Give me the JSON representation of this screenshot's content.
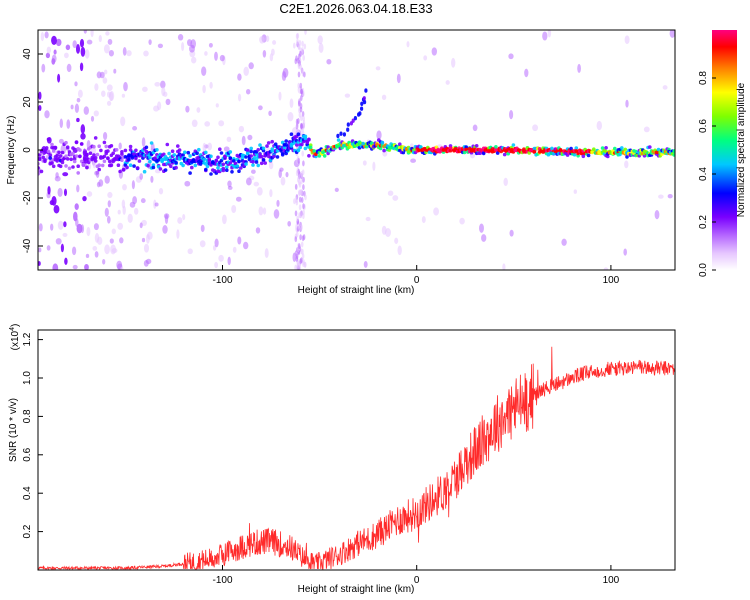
{
  "title": "C2E1.2026.063.04.18.E33",
  "chart_data": [
    {
      "type": "heatmap",
      "xlabel": "Height of straight line (km)",
      "ylabel": "Frequency (Hz)",
      "xlim": [
        -195,
        133
      ],
      "ylim": [
        -50,
        50
      ],
      "xticks": [
        -100,
        0,
        100
      ],
      "yticks": [
        -40,
        -20,
        0,
        20,
        40
      ],
      "colorbar": {
        "label": "Normalized spectral amplitude",
        "range": [
          0,
          1
        ],
        "ticks": [
          "0.0",
          "0.2",
          "0.4",
          "0.6",
          "0.8"
        ],
        "ticks_values": [
          0,
          0.2,
          0.4,
          0.6,
          0.8
        ],
        "colors": [
          "#ffffff",
          "#e6c6ff",
          "#b86cff",
          "#7a00ff",
          "#0000ff",
          "#00c8ff",
          "#00ff80",
          "#7fff00",
          "#ffff00",
          "#ff8000",
          "#ff0000",
          "#ff007f"
        ]
      },
      "ridge": [
        [
          -195,
          -2
        ],
        [
          -150,
          -3
        ],
        [
          -120,
          -4
        ],
        [
          -100,
          -5
        ],
        [
          -80,
          -2
        ],
        [
          -65,
          1
        ],
        [
          -58,
          4
        ],
        [
          -52,
          -2
        ],
        [
          -40,
          2
        ],
        [
          -20,
          2
        ],
        [
          0,
          0
        ],
        [
          50,
          0
        ],
        [
          100,
          -1
        ],
        [
          133,
          -1
        ]
      ],
      "ridge_branch": [
        [
          -40,
          5
        ],
        [
          -30,
          15
        ],
        [
          -25,
          25
        ]
      ]
    },
    {
      "type": "line",
      "xlabel": "Height of straight line (km)",
      "ylabel": "SNR (10 * v/v)",
      "yscale_label": "(x10",
      "yscale_exp": "4",
      "yscale_close": ")",
      "xlim": [
        -195,
        133
      ],
      "ylim": [
        0,
        1.25
      ],
      "xticks": [
        -100,
        0,
        100
      ],
      "yticks": [
        0.2,
        0.4,
        0.6,
        0.8,
        1.0,
        1.2
      ],
      "ytick_labels": [
        "0.2",
        "0.4",
        "0.6",
        "0.8",
        "1.0",
        "1.2"
      ],
      "color": "#ff2a2a",
      "series": [
        {
          "name": "SNR",
          "x": [
            -195,
            -170,
            -150,
            -130,
            -115,
            -105,
            -100,
            -95,
            -85,
            -75,
            -65,
            -58,
            -52,
            -45,
            -40,
            -35,
            -30,
            -25,
            -20,
            -15,
            -10,
            -5,
            0,
            5,
            10,
            15,
            20,
            25,
            30,
            35,
            40,
            45,
            50,
            55,
            60,
            65,
            70,
            75,
            80,
            85,
            90,
            95,
            100,
            105,
            110,
            115,
            120,
            125,
            133
          ],
          "y": [
            0.01,
            0.01,
            0.01,
            0.02,
            0.04,
            0.06,
            0.08,
            0.1,
            0.14,
            0.15,
            0.12,
            0.06,
            0.03,
            0.06,
            0.08,
            0.11,
            0.14,
            0.16,
            0.19,
            0.22,
            0.26,
            0.28,
            0.3,
            0.34,
            0.38,
            0.42,
            0.48,
            0.56,
            0.62,
            0.68,
            0.75,
            0.8,
            0.84,
            0.88,
            0.91,
            0.94,
            0.96,
            0.98,
            1.0,
            1.02,
            1.03,
            1.04,
            1.05,
            1.05,
            1.05,
            1.06,
            1.05,
            1.05,
            1.05
          ]
        }
      ]
    }
  ]
}
